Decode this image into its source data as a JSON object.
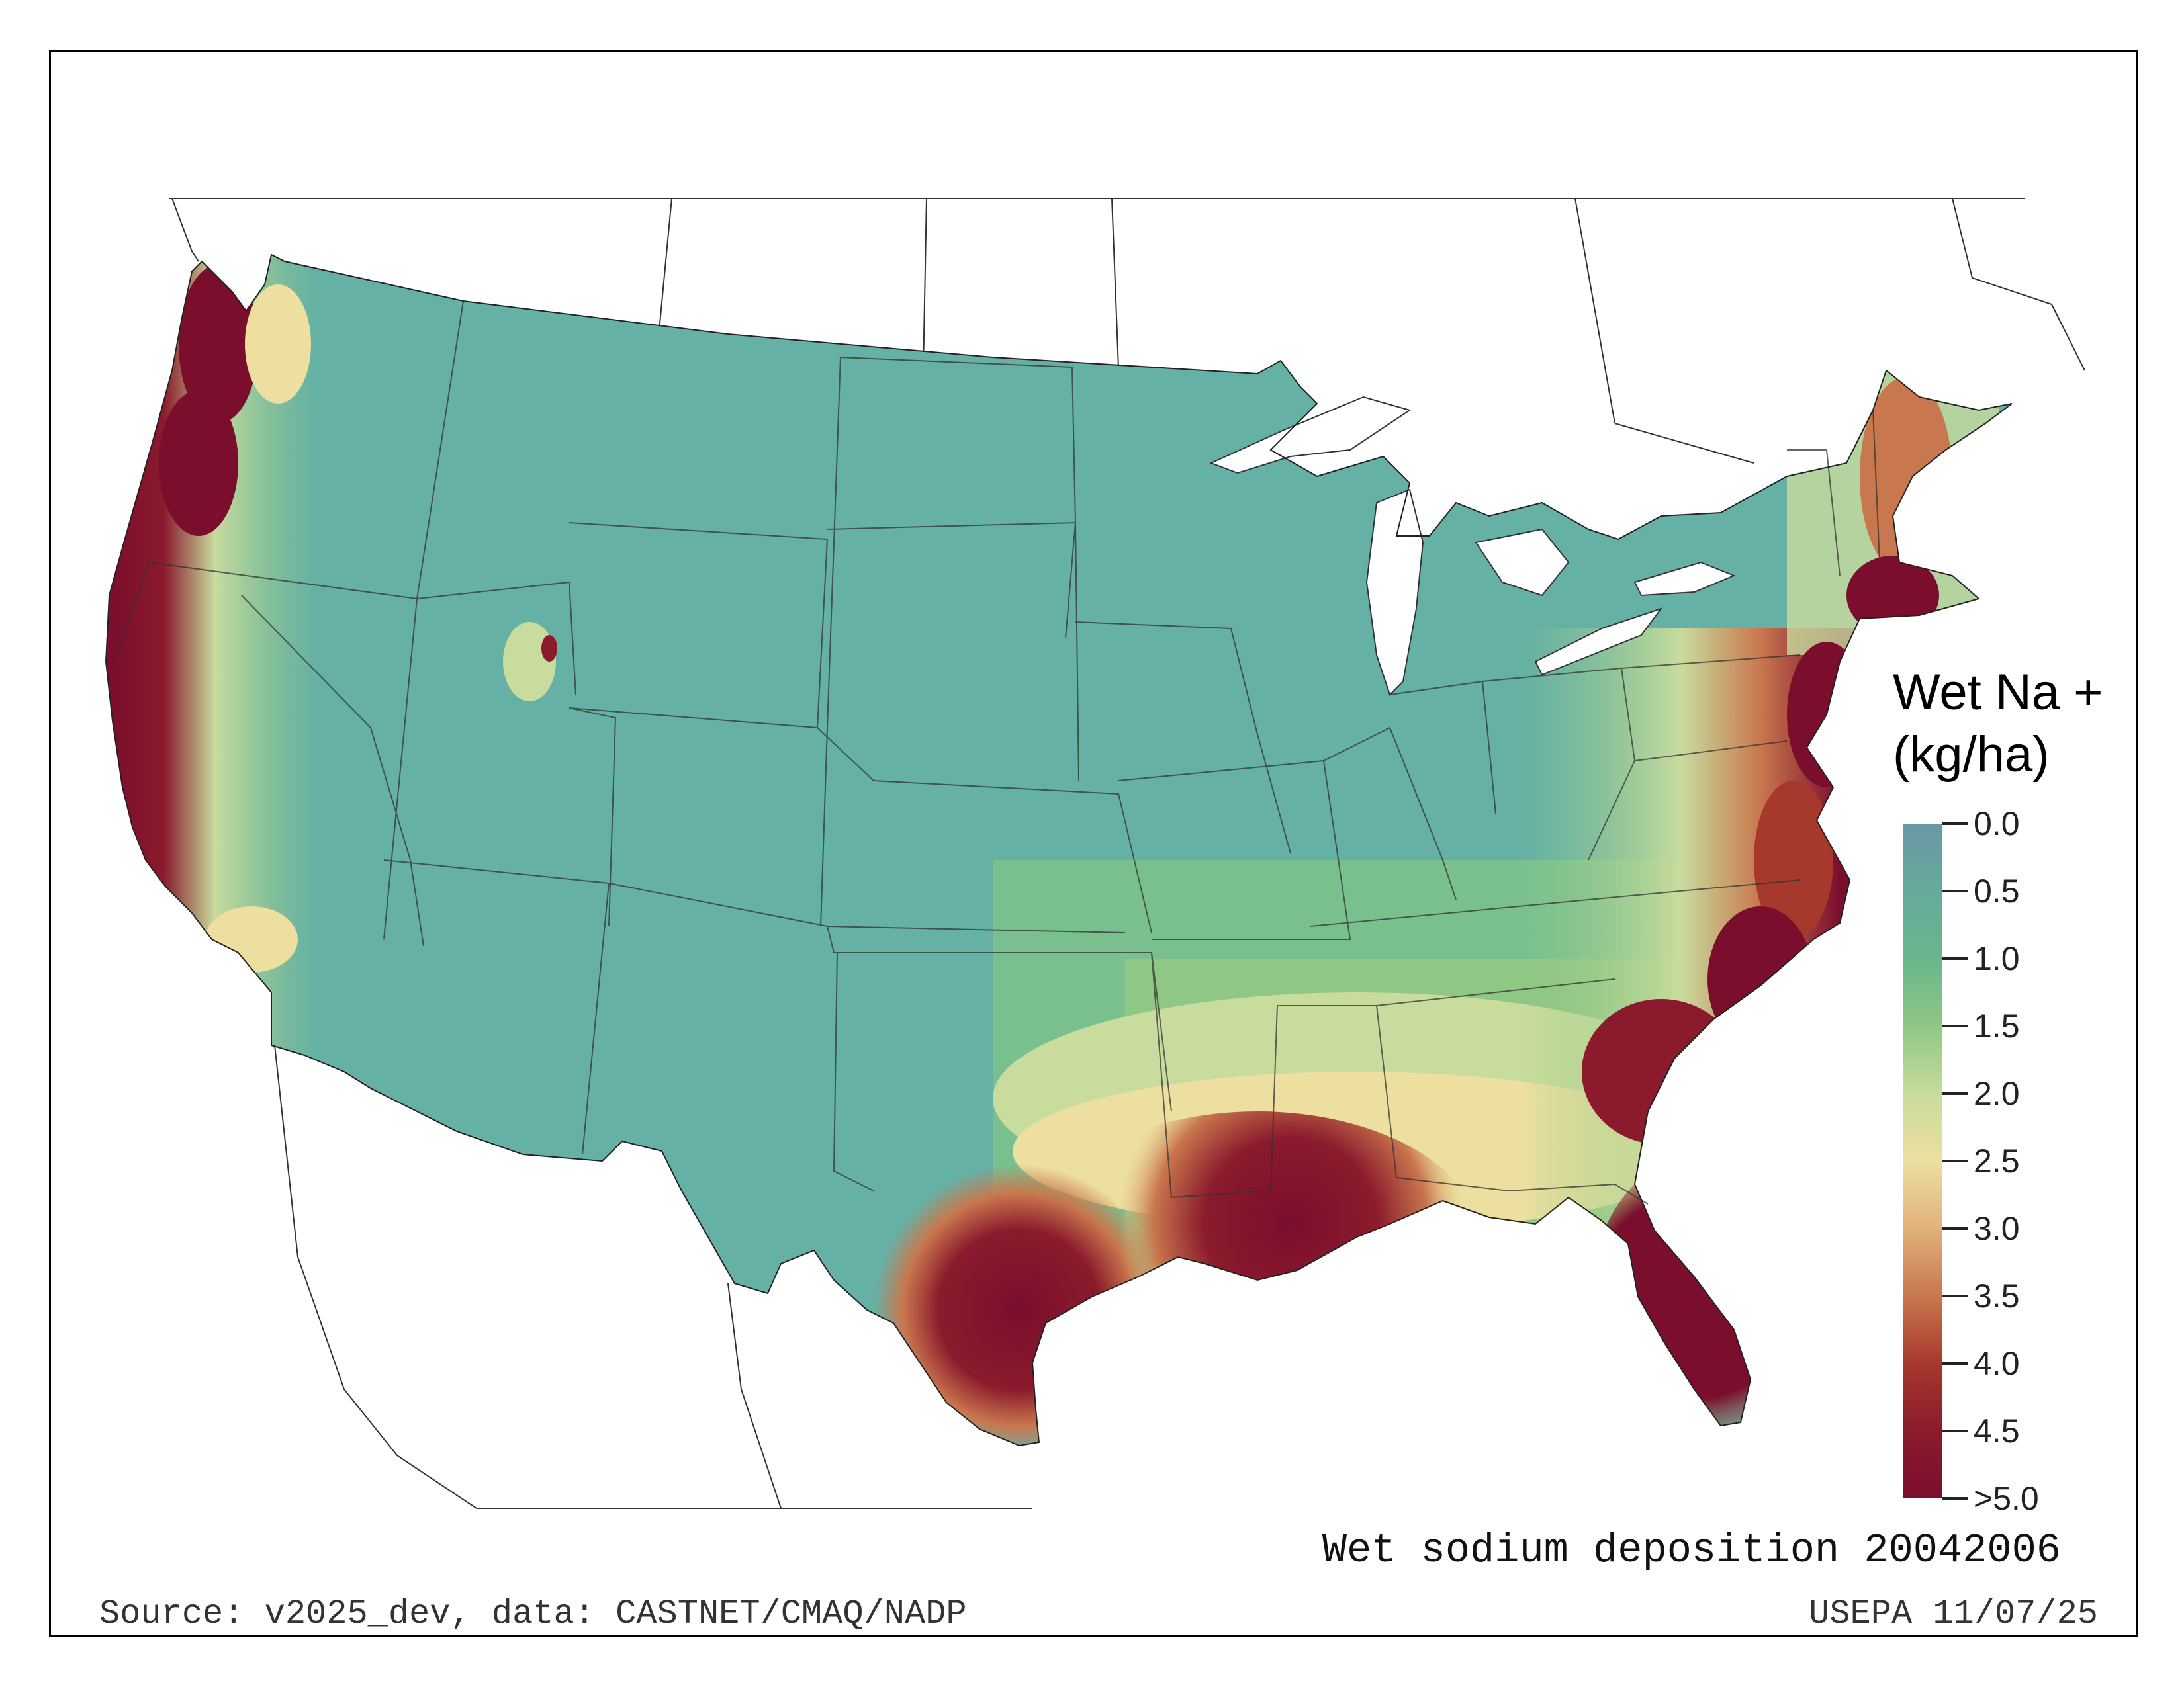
{
  "legend": {
    "title_line1": "Wet Na +",
    "title_line2": "(kg/ha)",
    "ticks": [
      "0.0",
      "0.5",
      "1.0",
      "1.5",
      "2.0",
      "2.5",
      "3.0",
      "3.5",
      "4.0",
      "4.5",
      ">5.0"
    ],
    "colors": [
      "#6b97a6",
      "#66aa9a",
      "#68b68c",
      "#8fc784",
      "#c8dc9d",
      "#ecdfa0",
      "#e1b27a",
      "#c9774e",
      "#a7382c",
      "#8b1a2c",
      "#7a0e2c"
    ]
  },
  "caption": "Wet sodium deposition 20042006",
  "source": "Source: v2025_dev, data: CASTNET/CMAQ/NADP",
  "credit": "USEPA 11/07/25"
}
